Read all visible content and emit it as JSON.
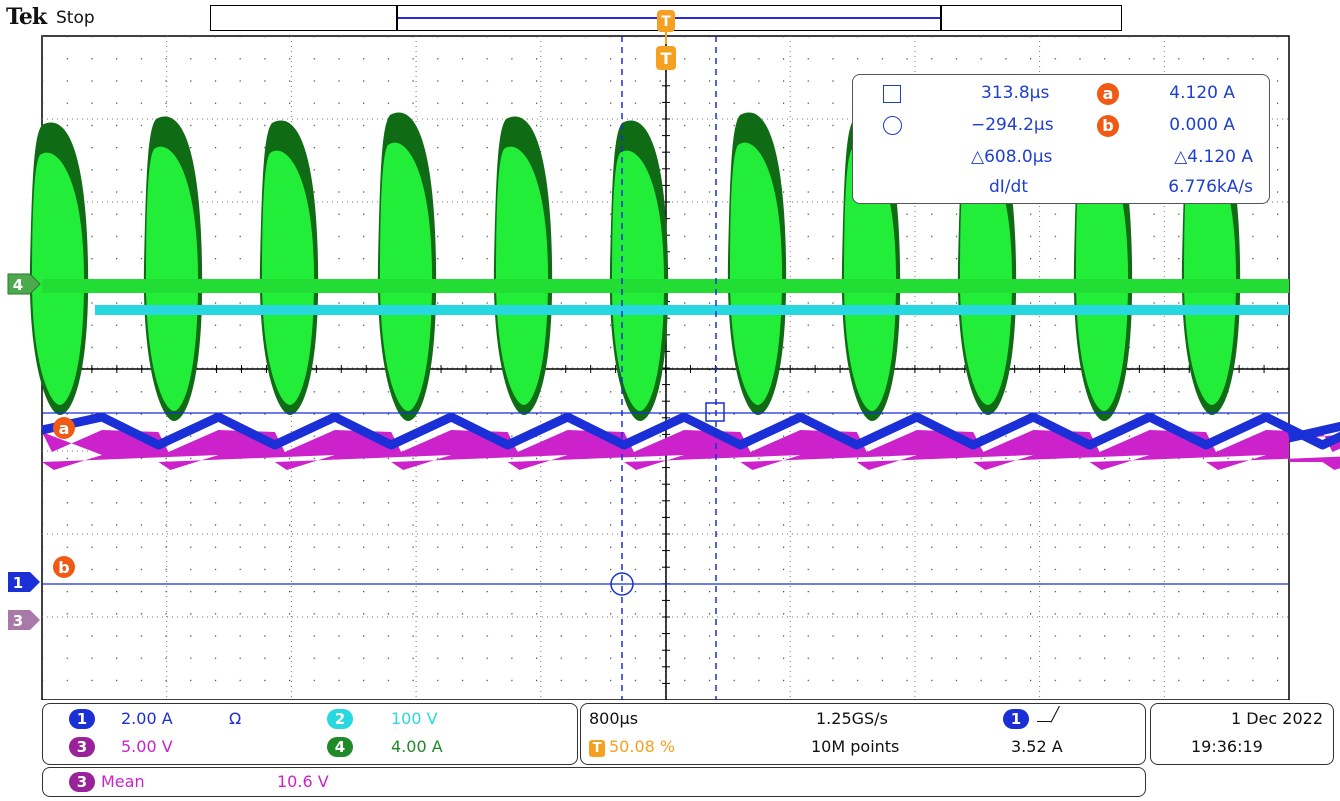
{
  "header": {
    "brand": "Tek",
    "acquisition_state": "Stop"
  },
  "colors": {
    "ch1": "#1a2fd6",
    "ch2": "#28d8e0",
    "ch3": "#cc22cc",
    "ch4": "#22dd33",
    "ch4_dark": "#0f6b14",
    "cursor": "#1a2fd6",
    "trigger": "#f5a020",
    "cursor_badge": "#f05a14"
  },
  "markers": {
    "trigger_top": "T",
    "trigger_record": "T",
    "ch4": "4",
    "ch1": "1",
    "ch3": "3",
    "cursor_a": "a",
    "cursor_b": "b"
  },
  "cursor_readout": {
    "square_time": "313.8µs",
    "a_label": "a",
    "a_value": "4.120 A",
    "circle_time": "−294.2µs",
    "b_label": "b",
    "b_value": "0.000 A",
    "delta_time": "△608.0µs",
    "delta_value": "△4.120 A",
    "rate_label": "dI/dt",
    "rate_value": "6.776kA/s"
  },
  "channels": {
    "ch1": {
      "num": "1",
      "scale": "2.00 A",
      "termination": "Ω"
    },
    "ch2": {
      "num": "2",
      "scale": "100 V"
    },
    "ch3": {
      "num": "3",
      "scale": "5.00 V"
    },
    "ch4": {
      "num": "4",
      "scale": "4.00 A"
    }
  },
  "timebase": {
    "scale": "800µs",
    "trigger_pos_icon": "T",
    "trigger_pos": "50.08 %",
    "sample_rate": "1.25GS/s",
    "record_length": "10M points",
    "trigger_source": "1",
    "trigger_slope": "⎽╱",
    "trigger_level": "3.52 A"
  },
  "datetime": {
    "date": "1 Dec  2022",
    "time": "19:36:19"
  },
  "measurement": {
    "source": "3",
    "name": "Mean",
    "value": "10.6 V"
  }
}
